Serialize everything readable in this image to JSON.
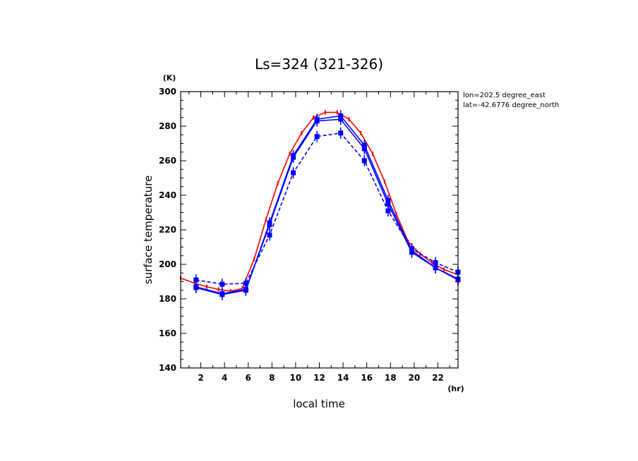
{
  "chart_data": {
    "type": "line",
    "title": "Ls=324 (321-326)",
    "xlabel": "local time",
    "ylabel": "surface temperature",
    "x_unit": "(hr)",
    "y_unit": "(K)",
    "xlim": [
      0.3,
      23.7
    ],
    "ylim": [
      140,
      300
    ],
    "xticks": [
      2,
      4,
      6,
      8,
      10,
      12,
      14,
      16,
      18,
      20,
      22
    ],
    "yticks": [
      140,
      160,
      180,
      200,
      220,
      240,
      260,
      280,
      300
    ],
    "info_lines": [
      "lon=202.5 degree_east",
      "lat=-42.6776 degree_north"
    ],
    "grid": false,
    "series": [
      {
        "color": "#ff0000",
        "style": "solid",
        "markers": "small",
        "x": [
          0.3,
          1.5,
          2.5,
          3.5,
          4.5,
          5.5,
          6.5,
          7.5,
          8.5,
          9.5,
          10.5,
          11.5,
          12.5,
          13.5,
          14.5,
          15.5,
          16.5,
          17.5,
          18.5,
          19.5,
          20.5,
          21.5,
          22.5,
          23.7
        ],
        "y": [
          192,
          189,
          187,
          185.5,
          184.5,
          186,
          203,
          226,
          247,
          264,
          276,
          285,
          288,
          288,
          284,
          276,
          264,
          248,
          229,
          213,
          206,
          201,
          197,
          194
        ]
      },
      {
        "color": "#0000ff",
        "style": "solid",
        "markers": "large",
        "x": [
          1.6,
          3.8,
          5.8,
          7.8,
          9.8,
          11.8,
          13.8,
          15.8,
          17.8,
          19.8,
          21.8,
          23.7
        ],
        "y": [
          186.5,
          182.5,
          185,
          224,
          263,
          284,
          286,
          269,
          237,
          208,
          198,
          191
        ]
      },
      {
        "color": "#0000ff",
        "style": "solid",
        "markers": "large",
        "x": [
          1.6,
          3.8,
          5.8,
          7.8,
          9.8,
          11.8,
          13.8,
          15.8,
          17.8,
          19.8,
          21.8,
          23.7
        ],
        "y": [
          187,
          183,
          185.5,
          223,
          262,
          283,
          284,
          267,
          235,
          207,
          198,
          191.5
        ]
      },
      {
        "color": "#0000ff",
        "style": "dashed",
        "markers": "large",
        "x": [
          1.6,
          3.8,
          5.8,
          7.8,
          9.8,
          11.8,
          13.8,
          15.8,
          17.8,
          19.8,
          21.8,
          23.7
        ],
        "y": [
          191,
          188.5,
          189,
          217,
          253,
          274,
          276,
          260,
          231,
          209,
          201,
          195.5
        ]
      }
    ]
  }
}
